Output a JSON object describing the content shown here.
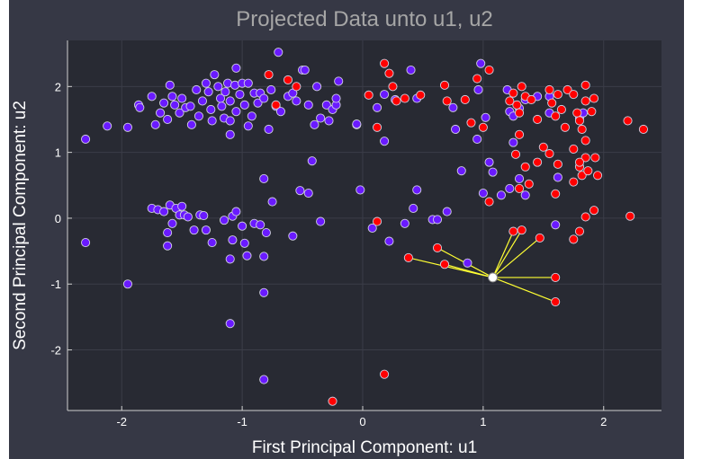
{
  "chart_data": {
    "type": "scatter",
    "title": "Projected Data unto u1, u2",
    "xlabel": "First Principal Component: u1",
    "ylabel": "Second Principal Component: u2",
    "xlim": [
      -2.45,
      2.48
    ],
    "ylim": [
      -2.92,
      2.7
    ],
    "xticks": [
      -2,
      -1,
      0,
      1,
      2
    ],
    "yticks": [
      -2,
      -1,
      0,
      1,
      2
    ],
    "grid": true,
    "colors": {
      "background": "#363845",
      "plot": "#282a33",
      "class_a": "#6a1aff",
      "class_b": "#ff0000",
      "query": "#ffffff",
      "neighbor_lines": "#ffff33"
    },
    "series": [
      {
        "color": "#6a1aff",
        "points": [
          [
            -2.3,
            1.2
          ],
          [
            -2.3,
            -0.37
          ],
          [
            -2.12,
            1.4
          ],
          [
            -1.95,
            1.38
          ],
          [
            -1.95,
            -1.0
          ],
          [
            -1.86,
            1.72
          ],
          [
            -1.85,
            1.68
          ],
          [
            -1.75,
            1.85
          ],
          [
            -1.72,
            1.42
          ],
          [
            -1.68,
            1.6
          ],
          [
            -1.65,
            1.75
          ],
          [
            -1.62,
            1.5
          ],
          [
            -1.6,
            2.02
          ],
          [
            -1.58,
            1.85
          ],
          [
            -1.56,
            1.72
          ],
          [
            -1.52,
            1.6
          ],
          [
            -1.5,
            1.82
          ],
          [
            -1.47,
            1.68
          ],
          [
            -1.43,
            1.7
          ],
          [
            -1.42,
            1.42
          ],
          [
            -1.38,
            1.95
          ],
          [
            -1.36,
            1.55
          ],
          [
            -1.33,
            1.78
          ],
          [
            -1.3,
            2.05
          ],
          [
            -1.28,
            1.92
          ],
          [
            -1.26,
            1.65
          ],
          [
            -1.25,
            1.48
          ],
          [
            -1.23,
            2.18
          ],
          [
            -1.2,
            2.0
          ],
          [
            -1.18,
            1.82
          ],
          [
            -1.17,
            1.7
          ],
          [
            -1.15,
            1.52
          ],
          [
            -1.14,
            1.92
          ],
          [
            -1.12,
            2.05
          ],
          [
            -1.1,
            1.78
          ],
          [
            -1.06,
            2.02
          ],
          [
            -1.05,
            1.62
          ],
          [
            -1.02,
            1.88
          ],
          [
            -1.0,
            2.05
          ],
          [
            -0.98,
            1.72
          ],
          [
            -0.95,
            2.05
          ],
          [
            -0.92,
            1.55
          ],
          [
            -0.9,
            1.9
          ],
          [
            -0.87,
            1.75
          ],
          [
            -1.1,
            1.48
          ],
          [
            -1.1,
            1.27
          ],
          [
            -1.05,
            2.28
          ],
          [
            -0.95,
            1.4
          ],
          [
            -0.85,
            1.9
          ],
          [
            -0.82,
            1.82
          ],
          [
            -0.78,
            1.35
          ],
          [
            -0.76,
            1.95
          ],
          [
            -0.72,
            1.7
          ],
          [
            -0.7,
            2.52
          ],
          [
            -0.68,
            1.62
          ],
          [
            -0.62,
            1.85
          ],
          [
            -0.58,
            1.9
          ],
          [
            -0.55,
            1.78
          ],
          [
            -0.5,
            2.25
          ],
          [
            -0.48,
            2.25
          ],
          [
            -0.45,
            1.72
          ],
          [
            -0.42,
            0.87
          ],
          [
            -0.4,
            1.42
          ],
          [
            -0.38,
            2.0
          ],
          [
            -0.35,
            1.52
          ],
          [
            -0.3,
            1.72
          ],
          [
            -0.28,
            1.48
          ],
          [
            -0.25,
            1.65
          ],
          [
            -0.22,
            1.72
          ],
          [
            -0.22,
            1.82
          ],
          [
            -0.2,
            2.08
          ],
          [
            -0.05,
            1.42
          ],
          [
            -0.02,
            0.43
          ],
          [
            -0.05,
            1.43
          ],
          [
            0.12,
            1.68
          ],
          [
            0.18,
            1.88
          ],
          [
            0.27,
            1.8
          ],
          [
            0.4,
            2.25
          ],
          [
            0.45,
            1.82
          ],
          [
            0.18,
            1.17
          ],
          [
            0.22,
            -0.35
          ],
          [
            0.08,
            -0.15
          ],
          [
            0.35,
            -0.08
          ],
          [
            0.42,
            0.15
          ],
          [
            0.45,
            0.43
          ],
          [
            0.58,
            -0.02
          ],
          [
            0.62,
            -0.02
          ],
          [
            0.7,
            0.1
          ],
          [
            0.75,
            1.68
          ],
          [
            0.77,
            1.35
          ],
          [
            0.82,
            0.72
          ],
          [
            0.87,
            -0.68
          ],
          [
            0.95,
            1.2
          ],
          [
            0.96,
            1.95
          ],
          [
            0.98,
            2.35
          ],
          [
            1.0,
            0.38
          ],
          [
            1.02,
            1.53
          ],
          [
            1.05,
            0.85
          ],
          [
            1.08,
            0.7
          ],
          [
            1.15,
            0.35
          ],
          [
            1.2,
            1.95
          ],
          [
            1.22,
            1.62
          ],
          [
            1.25,
            1.55
          ],
          [
            1.22,
            0.45
          ],
          [
            1.25,
            1.15
          ],
          [
            1.3,
            0.6
          ],
          [
            1.3,
            1.67
          ],
          [
            1.35,
            0.35
          ],
          [
            1.35,
            1.8
          ],
          [
            1.45,
            1.85
          ],
          [
            1.55,
            1.85
          ],
          [
            1.6,
            -0.1
          ],
          [
            1.55,
            1.6
          ],
          [
            1.62,
            0.62
          ],
          [
            1.8,
            1.52
          ],
          [
            1.83,
            1.6
          ],
          [
            -1.75,
            0.15
          ],
          [
            -1.7,
            0.13
          ],
          [
            -1.65,
            0.1
          ],
          [
            -1.62,
            -0.22
          ],
          [
            -1.6,
            0.2
          ],
          [
            -1.58,
            -0.08
          ],
          [
            -1.55,
            0.15
          ],
          [
            -1.52,
            0.05
          ],
          [
            -1.5,
            0.18
          ],
          [
            -1.48,
            0.05
          ],
          [
            -1.45,
            0.02
          ],
          [
            -1.4,
            -0.18
          ],
          [
            -1.35,
            0.05
          ],
          [
            -1.32,
            0.04
          ],
          [
            -1.3,
            -0.18
          ],
          [
            -1.25,
            -0.37
          ],
          [
            -1.15,
            -0.03
          ],
          [
            -1.08,
            0.03
          ],
          [
            -1.05,
            0.1
          ],
          [
            -1.0,
            -0.12
          ],
          [
            -0.98,
            -0.38
          ],
          [
            -0.9,
            -0.08
          ],
          [
            -0.85,
            -0.1
          ],
          [
            -0.8,
            -0.22
          ],
          [
            -0.75,
            0.25
          ],
          [
            -0.58,
            -0.27
          ],
          [
            -0.52,
            0.42
          ],
          [
            -0.45,
            0.38
          ],
          [
            -0.35,
            -0.05
          ],
          [
            -1.1,
            -0.62
          ],
          [
            -1.08,
            -0.33
          ],
          [
            -0.96,
            -0.57
          ],
          [
            -0.82,
            -0.58
          ],
          [
            -0.82,
            0.6
          ],
          [
            -0.82,
            -1.13
          ],
          [
            -1.1,
            -1.6
          ],
          [
            -0.82,
            -2.45
          ],
          [
            -1.62,
            -0.42
          ]
        ]
      },
      {
        "color": "#ff0000",
        "points": [
          [
            -0.78,
            2.18
          ],
          [
            -0.62,
            2.1
          ],
          [
            -0.55,
            2.0
          ],
          [
            -0.72,
            1.72
          ],
          [
            0.05,
            1.87
          ],
          [
            0.12,
            1.38
          ],
          [
            0.18,
            2.35
          ],
          [
            0.22,
            2.2
          ],
          [
            0.25,
            2.0
          ],
          [
            0.28,
            1.78
          ],
          [
            0.35,
            1.82
          ],
          [
            0.48,
            1.87
          ],
          [
            0.68,
            2.02
          ],
          [
            0.7,
            1.78
          ],
          [
            0.85,
            1.8
          ],
          [
            0.9,
            1.45
          ],
          [
            0.95,
            2.12
          ],
          [
            1.0,
            1.38
          ],
          [
            1.05,
            2.25
          ],
          [
            1.22,
            1.78
          ],
          [
            1.25,
            1.9
          ],
          [
            1.28,
            1.72
          ],
          [
            1.3,
            1.6
          ],
          [
            1.32,
            2.0
          ],
          [
            1.35,
            1.85
          ],
          [
            1.4,
            1.8
          ],
          [
            1.45,
            1.5
          ],
          [
            1.5,
            1.08
          ],
          [
            1.55,
            1.95
          ],
          [
            1.57,
            1.75
          ],
          [
            1.6,
            1.55
          ],
          [
            1.62,
            1.88
          ],
          [
            1.65,
            1.65
          ],
          [
            1.7,
            1.95
          ],
          [
            1.75,
            1.88
          ],
          [
            1.78,
            1.6
          ],
          [
            1.8,
            1.48
          ],
          [
            1.82,
            1.35
          ],
          [
            1.85,
            1.78
          ],
          [
            1.85,
            2.02
          ],
          [
            1.9,
            1.62
          ],
          [
            1.92,
            1.82
          ],
          [
            1.68,
            1.38
          ],
          [
            1.85,
            1.18
          ],
          [
            2.2,
            1.48
          ],
          [
            2.33,
            1.35
          ],
          [
            1.27,
            0.97
          ],
          [
            1.35,
            0.78
          ],
          [
            1.38,
            0.52
          ],
          [
            1.3,
            1.27
          ],
          [
            1.3,
            0.45
          ],
          [
            1.45,
            0.85
          ],
          [
            1.55,
            0.98
          ],
          [
            1.62,
            0.82
          ],
          [
            1.75,
            1.05
          ],
          [
            1.8,
            0.78
          ],
          [
            1.82,
            0.65
          ],
          [
            1.87,
            0.72
          ],
          [
            1.85,
            0.92
          ],
          [
            1.93,
            0.92
          ],
          [
            1.95,
            0.65
          ],
          [
            1.75,
            0.55
          ],
          [
            1.8,
            0.85
          ],
          [
            1.92,
            0.12
          ],
          [
            1.85,
            0.02
          ],
          [
            1.8,
            -0.2
          ],
          [
            1.75,
            -0.32
          ],
          [
            2.22,
            0.03
          ],
          [
            1.6,
            0.37
          ],
          [
            1.47,
            -0.3
          ],
          [
            1.32,
            -0.18
          ],
          [
            1.25,
            -0.2
          ],
          [
            1.05,
            0.25
          ],
          [
            0.62,
            -0.45
          ],
          [
            0.68,
            -0.7
          ],
          [
            0.38,
            -0.6
          ],
          [
            0.12,
            -0.05
          ],
          [
            1.6,
            -0.9
          ],
          [
            1.6,
            -1.27
          ],
          [
            0.18,
            -2.37
          ],
          [
            -0.25,
            -2.78
          ]
        ]
      }
    ],
    "query_point": [
      1.08,
      -0.9
    ],
    "neighbors": [
      [
        1.6,
        -0.9
      ],
      [
        1.6,
        -1.27
      ],
      [
        1.25,
        -0.2
      ],
      [
        1.32,
        -0.18
      ],
      [
        1.47,
        -0.3
      ],
      [
        0.68,
        -0.7
      ],
      [
        0.38,
        -0.6
      ],
      [
        0.62,
        -0.45
      ]
    ]
  }
}
